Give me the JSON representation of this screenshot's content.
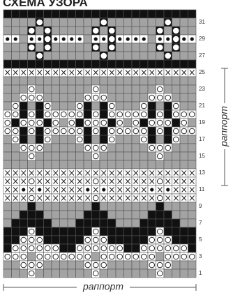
{
  "header": {
    "title": "СХЕМА УЗОРА"
  },
  "row_numbers": [
    "1",
    "3",
    "5",
    "7",
    "9",
    "11",
    "13",
    "15",
    "17",
    "19",
    "21",
    "23",
    "25",
    "27",
    "29",
    "31"
  ],
  "repeat_labels": {
    "bottom": "раппорт",
    "right": "раппорт"
  }
}
